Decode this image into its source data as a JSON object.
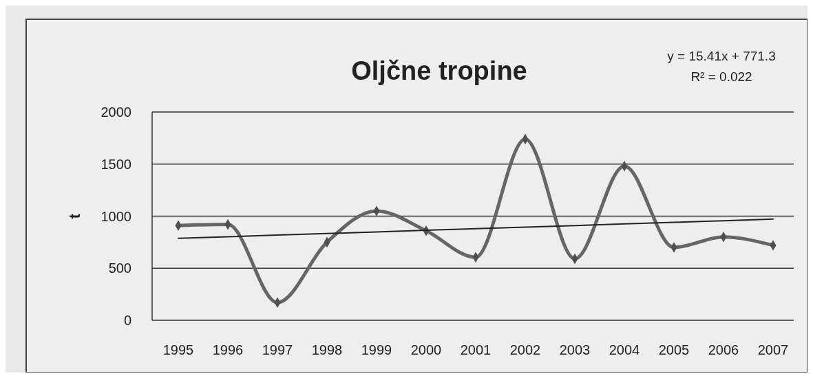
{
  "chart_data": {
    "type": "line",
    "title": "Oljčne tropine",
    "ylabel": "t",
    "categories": [
      "1995",
      "1996",
      "1997",
      "1998",
      "1999",
      "2000",
      "2001",
      "2002",
      "2003",
      "2004",
      "2005",
      "2006",
      "2007"
    ],
    "series": [
      {
        "color": "#666666",
        "marker": "diamond",
        "values": [
          910,
          920,
          170,
          750,
          1050,
          860,
          605,
          1740,
          590,
          1480,
          700,
          800,
          720
        ]
      },
      {
        "type": "line",
        "color": "#222222",
        "marker": "none",
        "values": [
          787,
          802,
          818,
          833,
          848,
          864,
          879,
          895,
          910,
          925,
          941,
          956,
          972
        ]
      }
    ],
    "annotations": [
      "y = 15.41x + 771.3",
      "R² = 0.022"
    ],
    "ylim": [
      0,
      2000
    ],
    "yticks": [
      0,
      500,
      1000,
      1500,
      2000
    ],
    "grid": "y"
  }
}
